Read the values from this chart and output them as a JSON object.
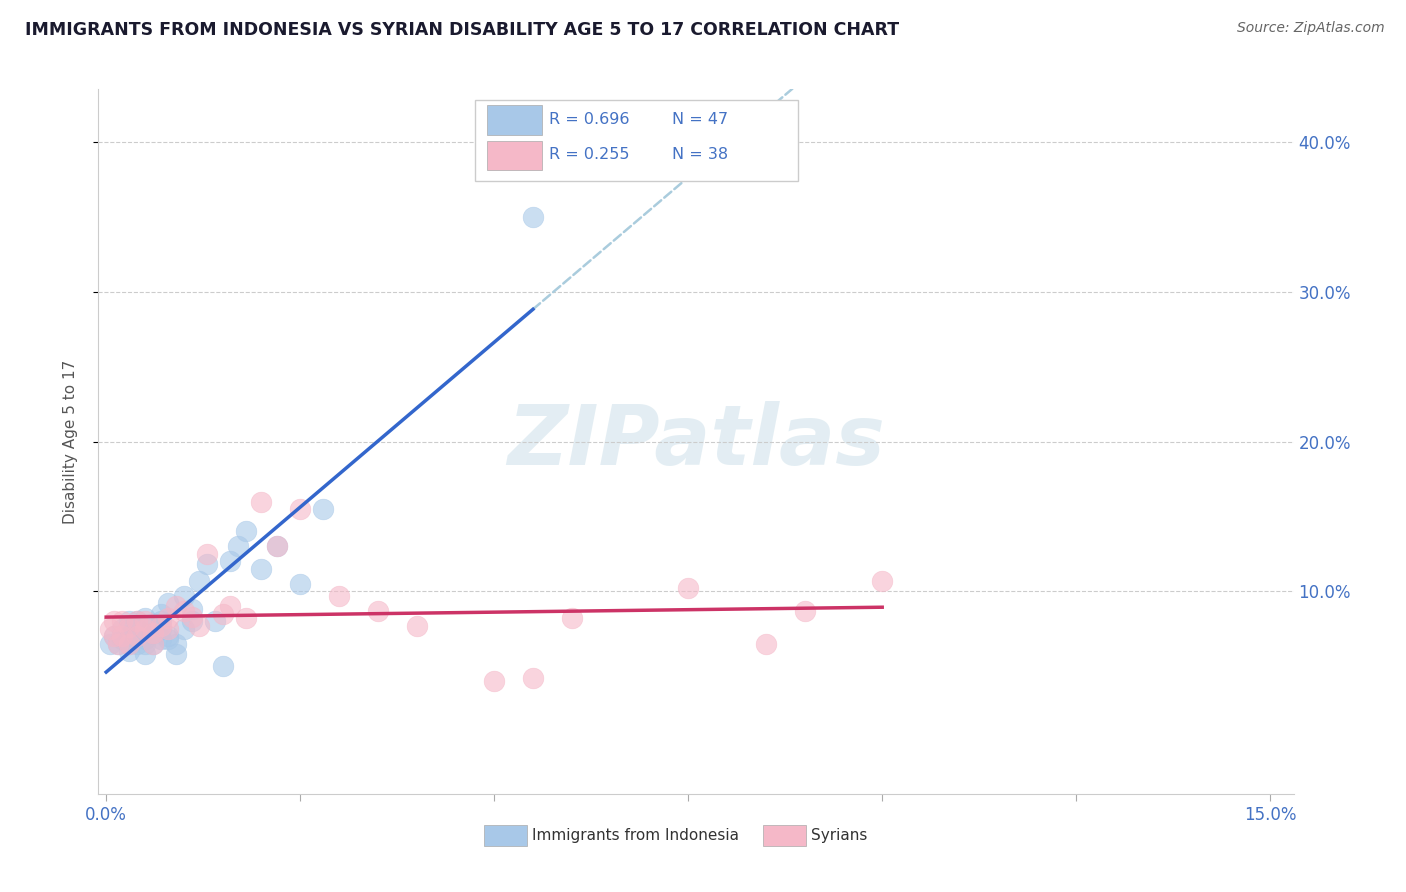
{
  "title": "IMMIGRANTS FROM INDONESIA VS SYRIAN DISABILITY AGE 5 TO 17 CORRELATION CHART",
  "source": "Source: ZipAtlas.com",
  "ylabel": "Disability Age 5 to 17",
  "xlim": [
    -0.001,
    0.153
  ],
  "ylim": [
    -0.035,
    0.435
  ],
  "xticks": [
    0.0,
    0.025,
    0.05,
    0.075,
    0.1,
    0.125,
    0.15
  ],
  "xticklabels_show": [
    "0.0%",
    "",
    "",
    "",
    "",
    "",
    "15.0%"
  ],
  "yticks": [
    0.1,
    0.2,
    0.3,
    0.4
  ],
  "yticklabels": [
    "10.0%",
    "20.0%",
    "30.0%",
    "40.0%"
  ],
  "legend_r_indo": "R = 0.696",
  "legend_n_indo": "N = 47",
  "legend_r_syria": "R = 0.255",
  "legend_n_syria": "N = 38",
  "blue_scatter_color": "#a8c8e8",
  "pink_scatter_color": "#f5b8c8",
  "blue_line_color": "#3366cc",
  "pink_line_color": "#cc3366",
  "dashed_line_color": "#aaccdd",
  "tick_color": "#4472c4",
  "watermark_text": "ZIPatlas",
  "bottom_legend_label_indo": "Immigrants from Indonesia",
  "bottom_legend_label_syria": "Syrians",
  "indonesia_x": [
    0.0005,
    0.001,
    0.0015,
    0.002,
    0.002,
    0.0025,
    0.003,
    0.003,
    0.003,
    0.003,
    0.004,
    0.004,
    0.004,
    0.004,
    0.005,
    0.005,
    0.005,
    0.005,
    0.005,
    0.006,
    0.006,
    0.006,
    0.007,
    0.007,
    0.007,
    0.007,
    0.008,
    0.008,
    0.008,
    0.009,
    0.009,
    0.01,
    0.01,
    0.011,
    0.011,
    0.012,
    0.013,
    0.014,
    0.015,
    0.016,
    0.017,
    0.018,
    0.02,
    0.022,
    0.025,
    0.028,
    0.055
  ],
  "indonesia_y": [
    0.065,
    0.07,
    0.065,
    0.075,
    0.068,
    0.07,
    0.08,
    0.075,
    0.065,
    0.06,
    0.07,
    0.075,
    0.065,
    0.08,
    0.082,
    0.068,
    0.058,
    0.07,
    0.065,
    0.078,
    0.072,
    0.065,
    0.068,
    0.085,
    0.08,
    0.075,
    0.092,
    0.068,
    0.07,
    0.065,
    0.058,
    0.075,
    0.097,
    0.08,
    0.088,
    0.107,
    0.118,
    0.08,
    0.05,
    0.12,
    0.13,
    0.14,
    0.115,
    0.13,
    0.105,
    0.155,
    0.35
  ],
  "syria_x": [
    0.0005,
    0.001,
    0.001,
    0.0015,
    0.002,
    0.002,
    0.003,
    0.003,
    0.004,
    0.004,
    0.005,
    0.005,
    0.006,
    0.006,
    0.007,
    0.008,
    0.008,
    0.009,
    0.01,
    0.011,
    0.012,
    0.013,
    0.015,
    0.016,
    0.018,
    0.02,
    0.022,
    0.025,
    0.03,
    0.035,
    0.04,
    0.05,
    0.055,
    0.06,
    0.075,
    0.085,
    0.09,
    0.1
  ],
  "syria_y": [
    0.075,
    0.07,
    0.08,
    0.065,
    0.07,
    0.08,
    0.076,
    0.065,
    0.07,
    0.08,
    0.075,
    0.08,
    0.065,
    0.072,
    0.077,
    0.082,
    0.075,
    0.09,
    0.087,
    0.083,
    0.077,
    0.125,
    0.085,
    0.09,
    0.082,
    0.16,
    0.13,
    0.155,
    0.097,
    0.087,
    0.077,
    0.04,
    0.042,
    0.082,
    0.102,
    0.065,
    0.087,
    0.107
  ]
}
